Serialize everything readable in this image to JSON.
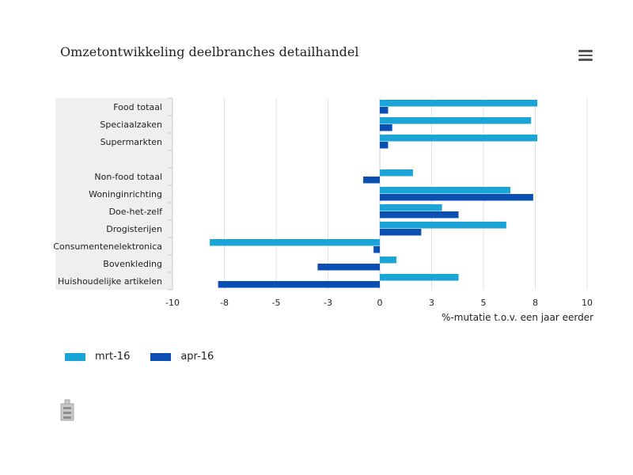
{
  "chart_data": {
    "type": "bar",
    "orientation": "horizontal",
    "title": "Omzetontwikkeling deelbranches detailhandel",
    "xlabel": "%-mutatie t.o.v. een jaar eerder",
    "ylabel": "",
    "xlim": [
      -10,
      10
    ],
    "x_ticks": [
      -10,
      -8,
      -5,
      -3,
      0,
      3,
      5,
      8,
      10
    ],
    "grid": true,
    "legend_position": "bottom-left",
    "categories": [
      "Food totaal",
      "Speciaalzaken",
      "Supermarkten",
      "",
      "Non-food totaal",
      "Woninginrichting",
      "Doe-het-zelf",
      "Drogisterijen",
      "Consumentenelektronica",
      "Bovenkleding",
      "Huishoudelijke artikelen"
    ],
    "series": [
      {
        "name": "mrt-16",
        "color": "#1aa5d6",
        "values": [
          7.6,
          7.3,
          7.6,
          null,
          1.6,
          6.3,
          3.0,
          6.1,
          -8.2,
          0.8,
          3.8
        ]
      },
      {
        "name": "apr-16",
        "color": "#0b4fb3",
        "values": [
          0.4,
          0.6,
          0.4,
          null,
          -0.8,
          7.4,
          3.8,
          2.0,
          -0.3,
          -3.0,
          -7.8
        ]
      }
    ]
  },
  "toolbar": {
    "menu_icon": "hamburger-menu-icon"
  },
  "footer": {
    "logo_icon": "cbs-logo-icon"
  }
}
